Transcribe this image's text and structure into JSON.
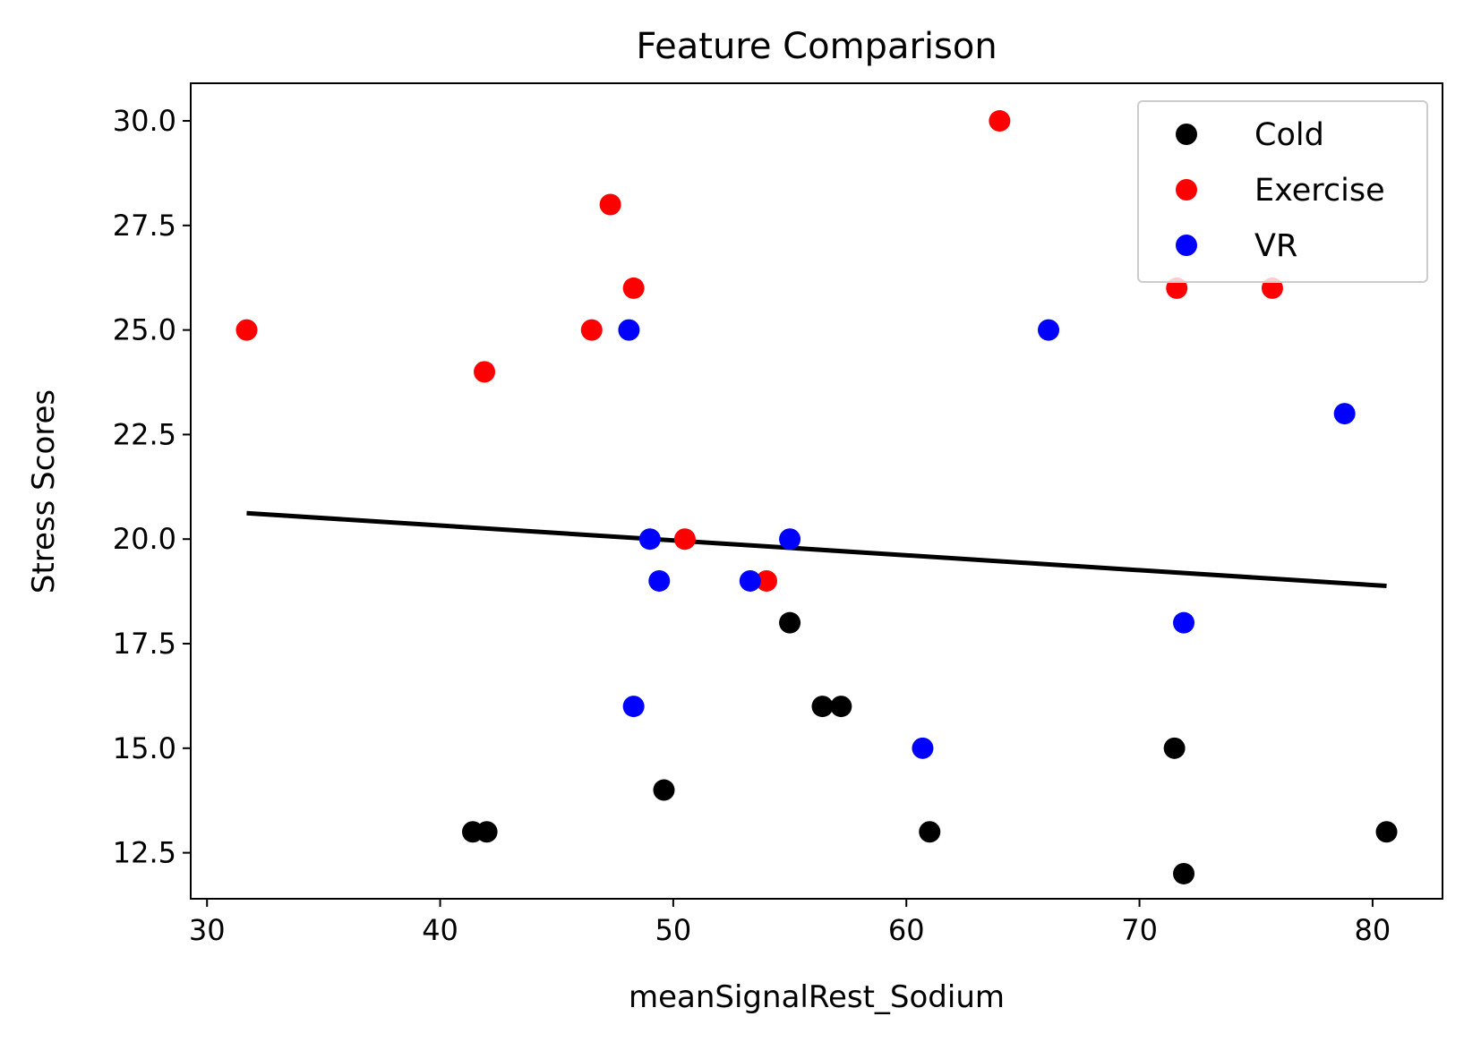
{
  "chart_data": {
    "type": "scatter",
    "title": "Feature Comparison",
    "xlabel": "meanSignalRest_Sodium",
    "ylabel": "Stress Scores",
    "xlim": [
      29.3,
      83.0
    ],
    "ylim": [
      11.4,
      30.9
    ],
    "xticks": [
      30,
      40,
      50,
      60,
      70,
      80
    ],
    "xtick_labels": [
      "30",
      "40",
      "50",
      "60",
      "70",
      "80"
    ],
    "yticks": [
      12.5,
      15.0,
      17.5,
      20.0,
      22.5,
      25.0,
      27.5,
      30.0
    ],
    "ytick_labels": [
      "12.5",
      "15.0",
      "17.5",
      "20.0",
      "22.5",
      "25.0",
      "27.5",
      "30.0"
    ],
    "grid": false,
    "legend_position": "top-right",
    "series": [
      {
        "name": "Cold",
        "color": "#000000",
        "points": [
          {
            "x": 41.4,
            "y": 13
          },
          {
            "x": 42.0,
            "y": 13
          },
          {
            "x": 49.6,
            "y": 14
          },
          {
            "x": 55.0,
            "y": 18
          },
          {
            "x": 56.4,
            "y": 16
          },
          {
            "x": 57.2,
            "y": 16
          },
          {
            "x": 61.0,
            "y": 13
          },
          {
            "x": 71.5,
            "y": 15
          },
          {
            "x": 71.9,
            "y": 12
          },
          {
            "x": 80.6,
            "y": 13
          }
        ]
      },
      {
        "name": "Exercise",
        "color": "#ff0000",
        "points": [
          {
            "x": 31.7,
            "y": 25
          },
          {
            "x": 41.9,
            "y": 24
          },
          {
            "x": 46.5,
            "y": 25
          },
          {
            "x": 47.3,
            "y": 28
          },
          {
            "x": 48.3,
            "y": 26
          },
          {
            "x": 50.5,
            "y": 20
          },
          {
            "x": 54.0,
            "y": 19
          },
          {
            "x": 64.0,
            "y": 30
          },
          {
            "x": 71.6,
            "y": 26
          },
          {
            "x": 75.7,
            "y": 26
          }
        ]
      },
      {
        "name": "VR",
        "color": "#0000ff",
        "points": [
          {
            "x": 48.1,
            "y": 25
          },
          {
            "x": 49.0,
            "y": 20
          },
          {
            "x": 49.4,
            "y": 19
          },
          {
            "x": 48.3,
            "y": 16
          },
          {
            "x": 53.3,
            "y": 19
          },
          {
            "x": 55.0,
            "y": 20
          },
          {
            "x": 60.7,
            "y": 15
          },
          {
            "x": 66.1,
            "y": 25
          },
          {
            "x": 71.9,
            "y": 18
          },
          {
            "x": 78.8,
            "y": 23
          }
        ]
      }
    ],
    "trend_line": {
      "color": "#000000",
      "points": [
        {
          "x": 31.7,
          "y": 20.62
        },
        {
          "x": 80.6,
          "y": 18.88
        }
      ]
    }
  }
}
